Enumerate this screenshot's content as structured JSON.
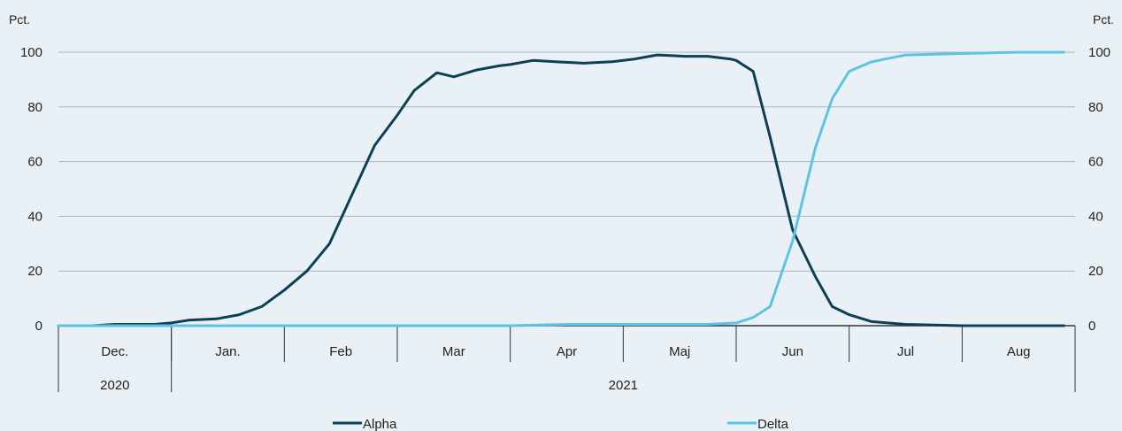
{
  "chart_data": {
    "type": "line",
    "unit_left": "Pct.",
    "unit_right": "Pct.",
    "ylim": [
      0,
      100
    ],
    "yticks": [
      0,
      20,
      40,
      60,
      80,
      100
    ],
    "grid": true,
    "legend_position": "bottom",
    "months": [
      "Dec.",
      "Jan.",
      "Feb",
      "Mar",
      "Apr",
      "Maj",
      "Jun",
      "Jul",
      "Aug"
    ],
    "years": [
      {
        "label": "2020",
        "months": 1
      },
      {
        "label": "2021",
        "months": 8
      }
    ],
    "x_unit": "months since start of Dec. 2020",
    "colors": {
      "Alpha": "#0d3f55",
      "Delta": "#5ec3e3",
      "grid": "#a9b4bb",
      "axis": "#333333"
    },
    "series": [
      {
        "name": "Alpha",
        "x": [
          0,
          0.3,
          0.5,
          0.85,
          1.0,
          1.15,
          1.4,
          1.6,
          1.8,
          2.0,
          2.2,
          2.4,
          2.6,
          2.8,
          3.0,
          3.15,
          3.35,
          3.5,
          3.7,
          3.9,
          4.0,
          4.2,
          4.4,
          4.65,
          4.9,
          5.1,
          5.3,
          5.55,
          5.75,
          5.95,
          6.0,
          6.15,
          6.3,
          6.5,
          6.7,
          6.85,
          7.0,
          7.2,
          7.5,
          8.0,
          8.5,
          8.9
        ],
        "values": [
          0,
          0,
          0.5,
          0.5,
          1,
          2,
          2.5,
          4,
          7,
          13,
          20,
          30,
          48,
          66,
          77,
          86,
          92.5,
          91,
          93.5,
          95,
          95.5,
          97,
          96.5,
          96,
          96.5,
          97.5,
          99,
          98.5,
          98.5,
          97.5,
          97,
          93,
          69,
          35,
          18,
          7,
          4,
          1.5,
          0.5,
          0,
          0,
          0
        ]
      },
      {
        "name": "Delta",
        "x": [
          0,
          2.0,
          4.0,
          4.5,
          5.0,
          5.5,
          5.75,
          6.0,
          6.15,
          6.3,
          6.5,
          6.7,
          6.85,
          7.0,
          7.2,
          7.5,
          8.0,
          8.5,
          8.9
        ],
        "values": [
          0,
          0,
          0,
          0.5,
          0.5,
          0.5,
          0.5,
          1,
          3,
          7,
          31,
          65,
          83,
          93,
          96.5,
          99,
          99.5,
          100,
          100
        ]
      }
    ]
  }
}
